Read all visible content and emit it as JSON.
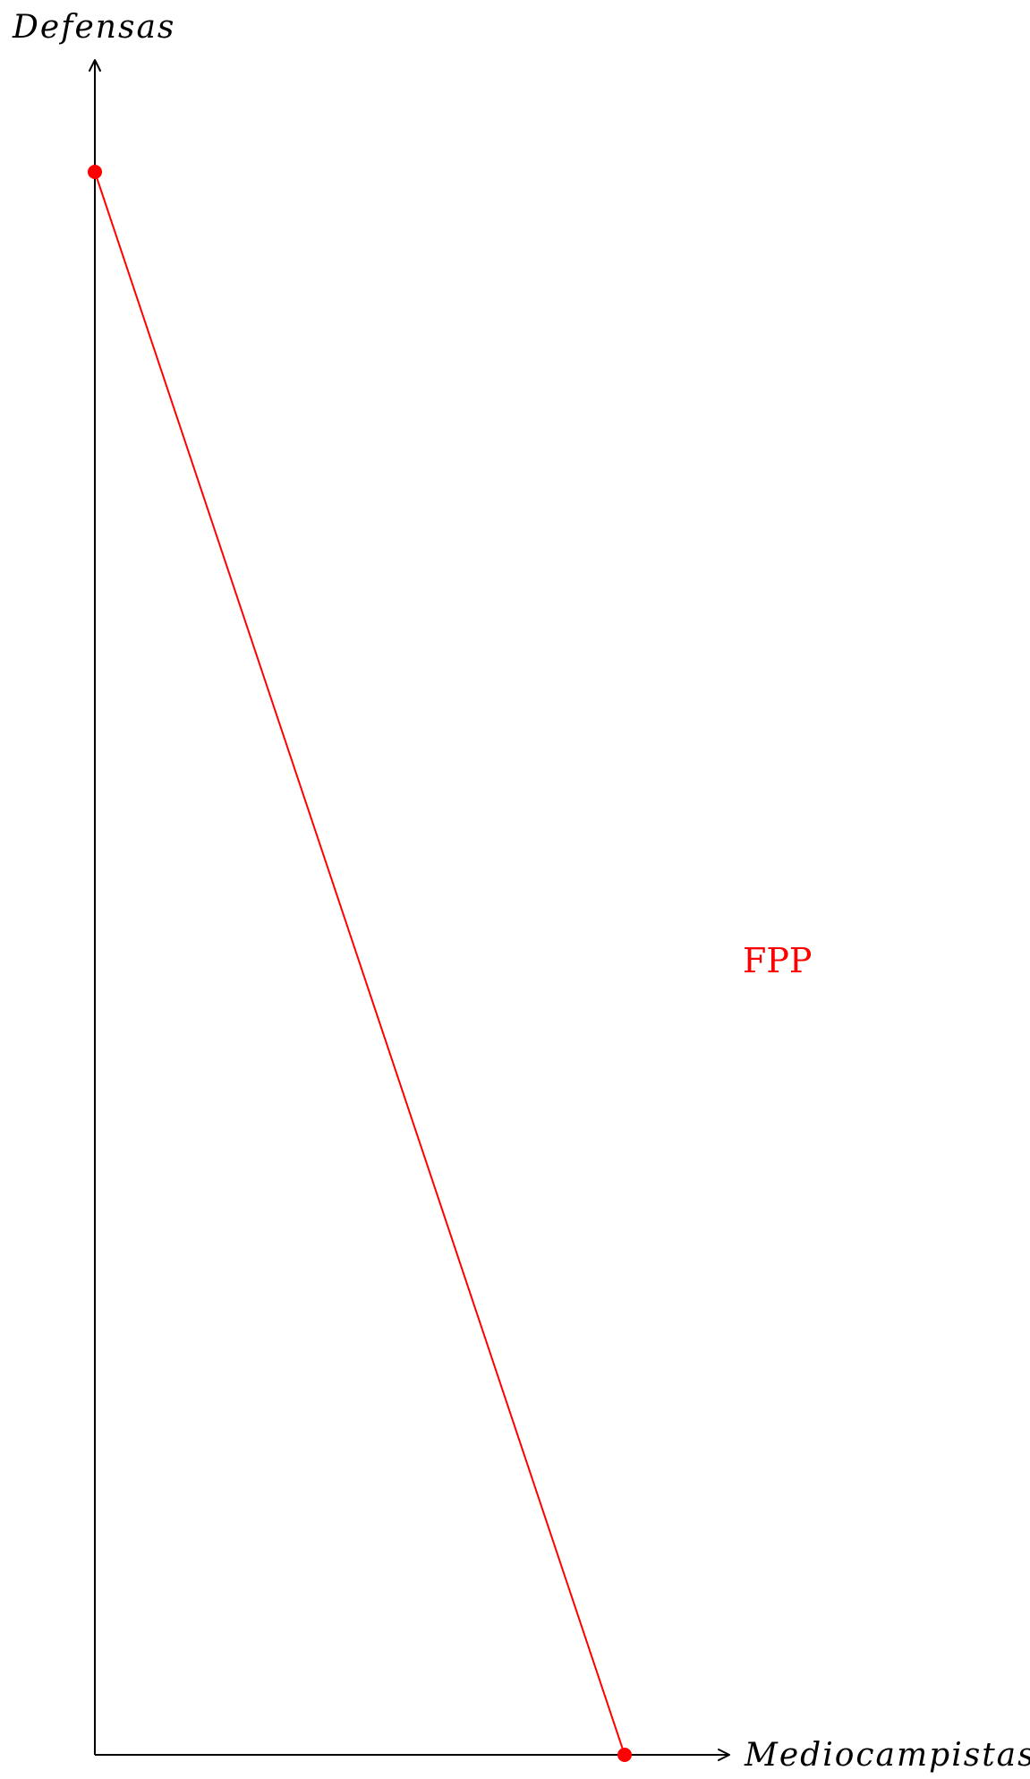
{
  "chart_data": {
    "type": "line",
    "xlabel": "Mediocampistas",
    "ylabel": "Defensas",
    "grid": false,
    "xlim": [
      0,
      12
    ],
    "ylim": [
      0,
      36
    ],
    "series": [
      {
        "name": "FPP",
        "color": "#ff0000",
        "points": [
          {
            "x": 0,
            "y": 32
          },
          {
            "x": 10,
            "y": 0
          }
        ]
      }
    ],
    "annotations": [
      {
        "text": "FPP",
        "color": "#ff0000"
      }
    ]
  },
  "colors": {
    "axis": "#000000",
    "series": "#ff0000"
  }
}
